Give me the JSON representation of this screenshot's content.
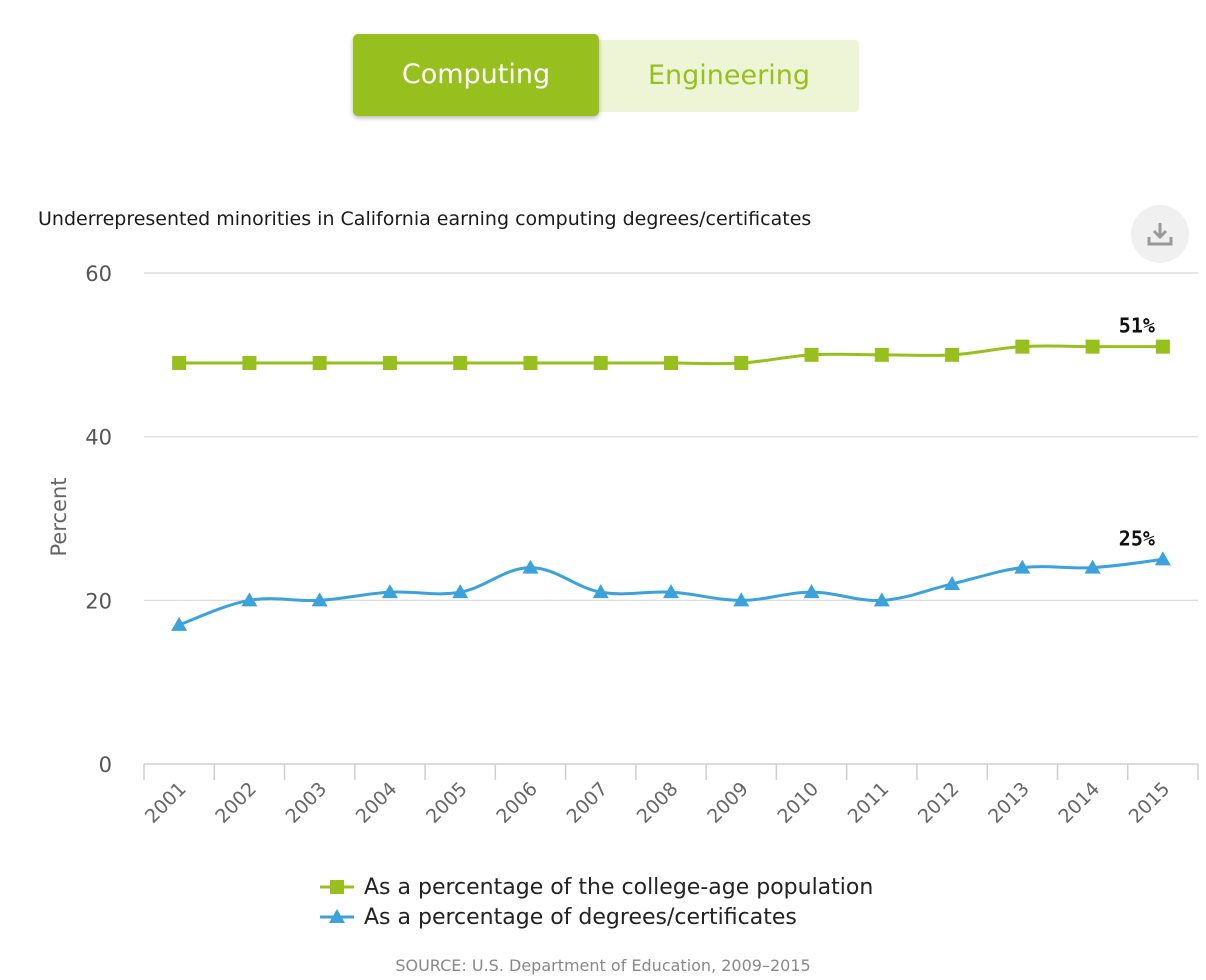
{
  "tabs": [
    {
      "label": "Computing",
      "active": true
    },
    {
      "label": "Engineering",
      "active": false
    }
  ],
  "download_icon": "download-icon",
  "colors": {
    "series1": "#97c01f",
    "series2": "#3ca2dc",
    "tab_active_bg": "#97c01f",
    "tab_inactive_bg": "#eef5d6",
    "grid": "#d8d8d8"
  },
  "chart_data": {
    "type": "line",
    "title": "Underrepresented minorities in California earning computing degrees/certificates",
    "ylabel": "Percent",
    "ylim": [
      0,
      60
    ],
    "yticks": [
      "0",
      "20",
      "40",
      "60"
    ],
    "x": [
      "2001",
      "2002",
      "2003",
      "2004",
      "2005",
      "2006",
      "2007",
      "2008",
      "2009",
      "2010",
      "2011",
      "2012",
      "2013",
      "2014",
      "2015"
    ],
    "series": [
      {
        "name": "As a percentage of the college-age population",
        "values": [
          49,
          49,
          49,
          49,
          49,
          49,
          49,
          49,
          49,
          50,
          50,
          50,
          51,
          51,
          51
        ],
        "marker": "square",
        "end_label": "51%"
      },
      {
        "name": "As a percentage of degrees/certificates",
        "values": [
          17,
          20,
          20,
          21,
          21,
          24,
          21,
          21,
          20,
          21,
          20,
          22,
          24,
          24,
          25
        ],
        "marker": "triangle",
        "end_label": "25%"
      }
    ],
    "grid": true,
    "legend": "bottom-center"
  },
  "source": "SOURCE: U.S. Department of Education, 2009–2015"
}
